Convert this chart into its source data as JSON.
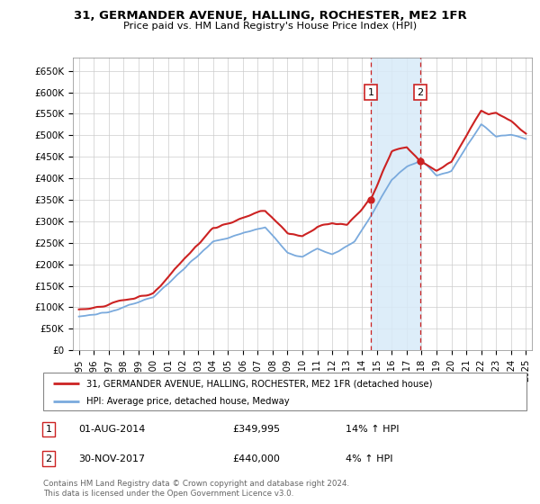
{
  "title": "31, GERMANDER AVENUE, HALLING, ROCHESTER, ME2 1FR",
  "subtitle": "Price paid vs. HM Land Registry's House Price Index (HPI)",
  "ylim": [
    0,
    680000
  ],
  "xlim_start": 1994.6,
  "xlim_end": 2025.4,
  "sale_color": "#cc2222",
  "hpi_color": "#7aaadd",
  "annotation_color": "#cc2222",
  "shade_color": "#d8eaf8",
  "legend_label_sale": "31, GERMANDER AVENUE, HALLING, ROCHESTER, ME2 1FR (detached house)",
  "legend_label_hpi": "HPI: Average price, detached house, Medway",
  "sale1_x": 2014.58,
  "sale1_y": 349995,
  "sale2_x": 2017.92,
  "sale2_y": 440000,
  "footer": "Contains HM Land Registry data © Crown copyright and database right 2024.\nThis data is licensed under the Open Government Licence v3.0.",
  "annot1_date": "01-AUG-2014",
  "annot1_price": "£349,995",
  "annot1_hpi": "14% ↑ HPI",
  "annot2_date": "30-NOV-2017",
  "annot2_price": "£440,000",
  "annot2_hpi": "4% ↑ HPI"
}
